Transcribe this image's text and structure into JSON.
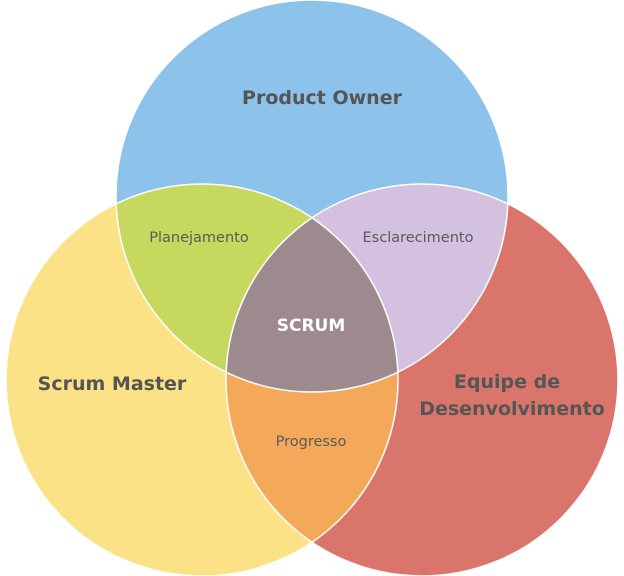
{
  "diagram": {
    "circles": {
      "product_owner": {
        "label": "Product Owner",
        "color": "#8dc2ea"
      },
      "scrum_master": {
        "label": "Scrum Master",
        "color": "#fbe286"
      },
      "dev_team": {
        "label_line1": "Equipe de",
        "label_line2": "Desenvolvimento",
        "color": "#d9756b"
      }
    },
    "overlaps": {
      "po_sm": {
        "label": "Planejamento",
        "color": "#c7d85f"
      },
      "po_dev": {
        "label": "Esclarecimento",
        "color": "#d3c1df"
      },
      "sm_dev": {
        "label": "Progresso",
        "color": "#f4a95a"
      }
    },
    "center": {
      "label": "SCRUM",
      "color": "#9d8a8f"
    },
    "outline_color": "#ffffff"
  }
}
